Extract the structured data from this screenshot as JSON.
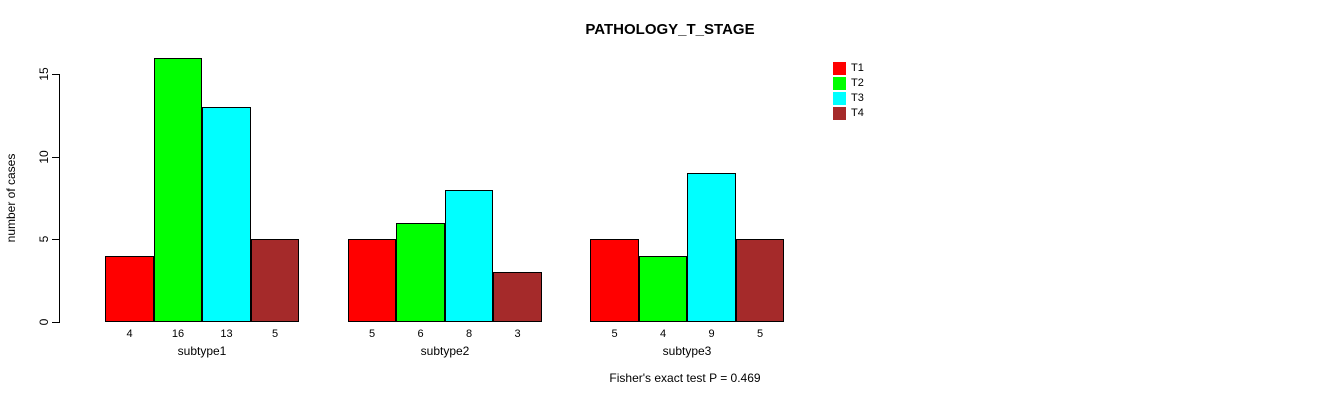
{
  "chart_data": {
    "type": "bar",
    "title": "PATHOLOGY_T_STAGE",
    "xlabel": "",
    "ylabel": "number of cases",
    "categories": [
      "subtype1",
      "subtype2",
      "subtype3"
    ],
    "series": [
      {
        "name": "T1",
        "color": "#ff0000",
        "values": [
          4,
          5,
          5
        ]
      },
      {
        "name": "T2",
        "color": "#00ff00",
        "values": [
          16,
          6,
          4
        ]
      },
      {
        "name": "T3",
        "color": "#00ffff",
        "values": [
          13,
          8,
          9
        ]
      },
      {
        "name": "T4",
        "color": "#a52a2a",
        "values": [
          5,
          3,
          5
        ]
      }
    ],
    "group_values": {
      "subtype1": [
        4,
        16,
        13,
        5
      ],
      "subtype2": [
        5,
        6,
        8,
        3
      ],
      "subtype3": [
        5,
        4,
        9,
        5
      ]
    },
    "yticks": [
      0,
      5,
      10,
      15
    ],
    "ylim": [
      0,
      16.6
    ],
    "grid": false,
    "bar_value_labels": true,
    "legend_position": "right",
    "legend_entries": [
      "T1",
      "T2",
      "T3",
      "T4"
    ],
    "annotation": "Fisher's exact test P = 0.469",
    "colors": {
      "T1": "#ff0000",
      "T2": "#00ff00",
      "T3": "#00ffff",
      "T4": "#a52a2a",
      "axis": "#000000",
      "background": "#ffffff"
    }
  }
}
